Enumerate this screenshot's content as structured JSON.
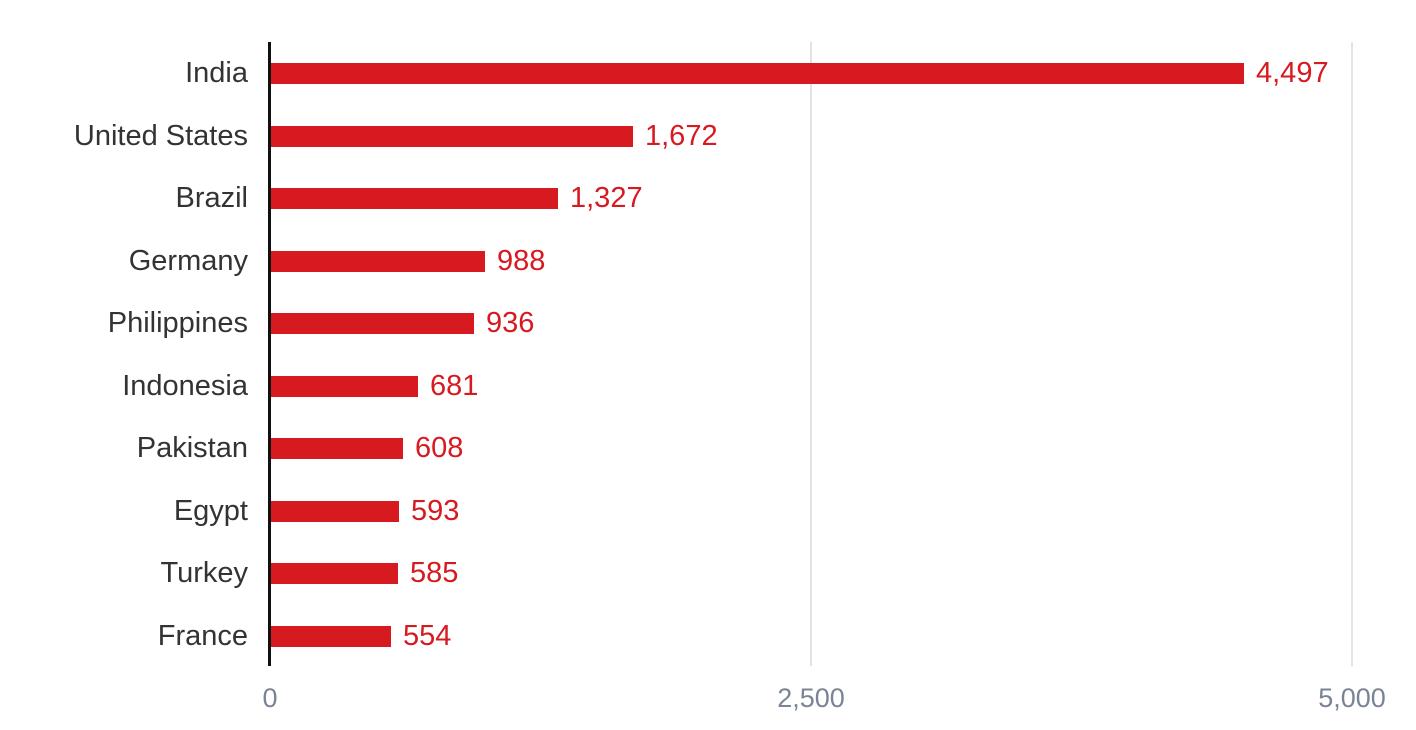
{
  "chart_data": {
    "type": "bar",
    "orientation": "horizontal",
    "title": "",
    "xlabel": "",
    "ylabel": "",
    "categories": [
      "India",
      "United States",
      "Brazil",
      "Germany",
      "Philippines",
      "Indonesia",
      "Pakistan",
      "Egypt",
      "Turkey",
      "France"
    ],
    "values": [
      4497,
      1672,
      1327,
      988,
      936,
      681,
      608,
      593,
      585,
      554
    ],
    "value_labels": [
      "4,497",
      "1,672",
      "1,327",
      "988",
      "936",
      "681",
      "608",
      "593",
      "585",
      "554"
    ],
    "xlim": [
      0,
      5000
    ],
    "x_ticks": [
      0,
      2500,
      5000
    ],
    "x_tick_labels": [
      "0",
      "2,500",
      "5,000"
    ],
    "grid": "vertical gridlines at x ticks",
    "legend": null,
    "colors": {
      "bar": "#d71920",
      "value_label": "#d71920",
      "category_label": "#333333",
      "tick_label": "#7a8494",
      "gridline": "#e3e3e3",
      "axis": "#111111"
    }
  }
}
